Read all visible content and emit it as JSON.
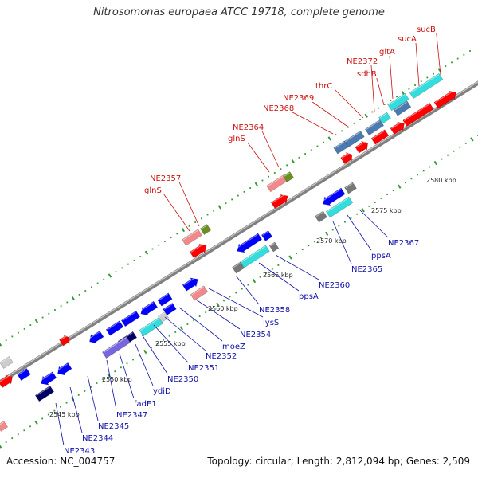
{
  "title": "Nitrosomonas europaea ATCC 19718, complete genome",
  "footer": {
    "accession": "Accession: NC_004757",
    "topology": "Topology: circular; Length: 2,812,094 bp; Genes: 2,509"
  },
  "colors": {
    "backbone": "#808080",
    "red": "#ff0000",
    "pink": "#f08a8a",
    "blue": "#0000ff",
    "navy": "#000066",
    "cyan": "#33dddd",
    "steel": "#4a7ab0",
    "olive": "#6b8e23",
    "gray": "#777777",
    "purple": "#7766dd",
    "light": "#cccccc",
    "dots": "#339933",
    "top_label": "#cc1111",
    "bottom_label": "#1111aa"
  },
  "kbp_labels": [
    "2545 kbp",
    "2550 kbp",
    "2555 kbp",
    "2560 kbp",
    "2565 kbp",
    "2570 kbp",
    "2575 kbp",
    "2580 kbp"
  ],
  "top_labels": [
    "sucB",
    "sucA",
    "gltA",
    "sdhB",
    "NE2372",
    "thrC",
    "NE2369",
    "NE2368",
    "NE2364",
    "glnS",
    "NE2357",
    "glnS"
  ],
  "bottom_labels": [
    "NE2367",
    "ppsA",
    "NE2365",
    "NE2360",
    "ppsA",
    "NE2358",
    "lysS",
    "NE2354",
    "moeZ",
    "NE2352",
    "NE2351",
    "NE2350",
    "ydiD",
    "fadE1",
    "NE2347",
    "NE2345",
    "NE2344",
    "NE2343"
  ]
}
